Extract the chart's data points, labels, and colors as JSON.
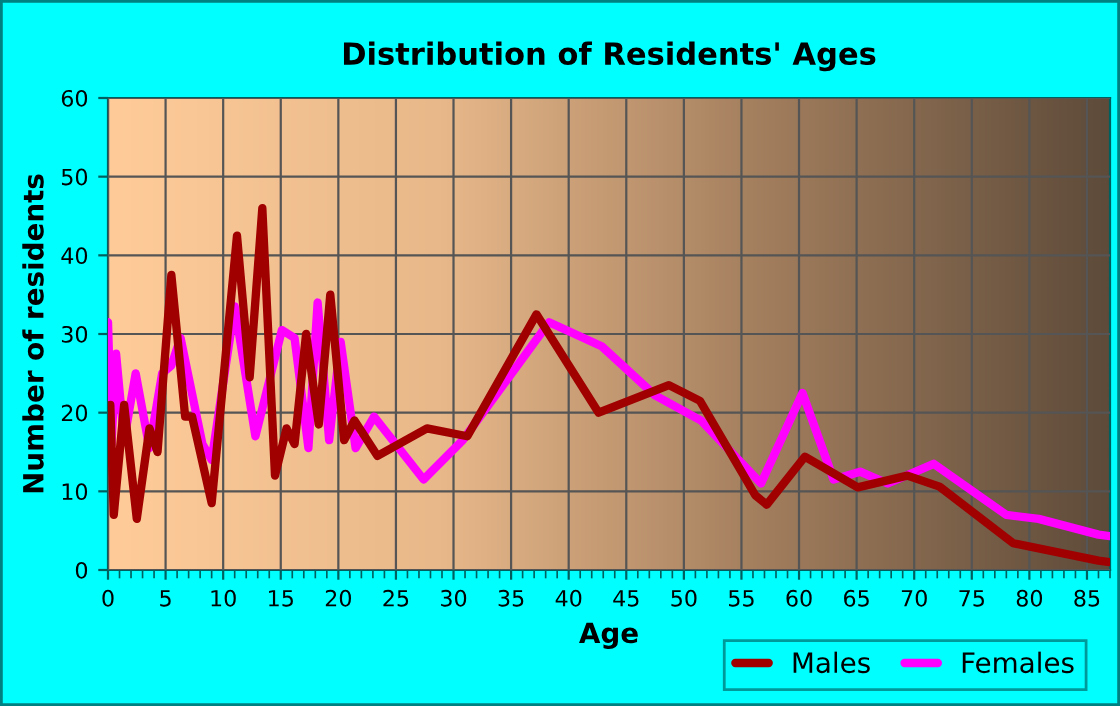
{
  "chart_data": {
    "type": "line",
    "title": "Distribution of Residents' Ages",
    "xlabel": "Age",
    "ylabel": "Number of residents",
    "xlim": [
      0,
      87
    ],
    "xticks": [
      0,
      5,
      10,
      15,
      20,
      25,
      30,
      35,
      40,
      45,
      50,
      55,
      60,
      65,
      70,
      75,
      80,
      85
    ],
    "ylim": [
      0,
      60
    ],
    "yticks": [
      0,
      10,
      20,
      30,
      40,
      50,
      60
    ],
    "grid": true,
    "legend": "bottom right",
    "marker": "none",
    "line_style": "solid",
    "series": [
      {
        "name": "Males",
        "color": "#a00000",
        "x": [
          0,
          0.2,
          0.5,
          1.4,
          2.5,
          3.6,
          4.3,
          5.5,
          6.7,
          7.3,
          9.0,
          11.2,
          12.3,
          13.4,
          14.5,
          15.5,
          16.2,
          17.2,
          18.3,
          19.3,
          20.5,
          21.4,
          23.4,
          27.7,
          31.2,
          37.2,
          42.6,
          48.7,
          51.4,
          56.2,
          57.2,
          60.5,
          65.1,
          69.4,
          72.2,
          78.6,
          86,
          87
        ],
        "values": [
          14,
          21,
          7,
          21,
          6.5,
          18,
          15,
          37.5,
          19.5,
          19.5,
          8.5,
          42.5,
          24.5,
          46,
          12,
          18,
          16,
          30,
          18.5,
          35,
          16.5,
          19,
          14.5,
          18,
          17,
          32.5,
          20,
          23.5,
          21.5,
          9.5,
          8.3,
          14.4,
          10.5,
          12,
          10.6,
          3.4,
          1.2,
          1
        ]
      },
      {
        "name": "Females",
        "color": "#ff00ff",
        "x": [
          0,
          0.3,
          0.7,
          1.4,
          2.4,
          3.6,
          4.7,
          5.5,
          6.3,
          8.2,
          9.0,
          11.0,
          12.8,
          15.1,
          16.2,
          17.4,
          18.2,
          19.2,
          20.2,
          21.5,
          23.1,
          27.4,
          30.8,
          38.3,
          42.9,
          47.5,
          51.5,
          56.7,
          60.3,
          63,
          65.3,
          67.7,
          71.7,
          78,
          80.8,
          86,
          87
        ],
        "values": [
          31.5,
          16,
          27.5,
          16.5,
          25,
          15.5,
          25,
          26,
          29.5,
          16,
          14,
          33.5,
          17,
          30.5,
          29.5,
          15.5,
          34,
          16.5,
          29,
          15.5,
          19.5,
          11.5,
          16.5,
          31.5,
          28.4,
          22.2,
          19,
          11,
          22.5,
          11.5,
          12.5,
          11,
          13.5,
          7,
          6.5,
          4.5,
          4.3
        ]
      }
    ]
  }
}
